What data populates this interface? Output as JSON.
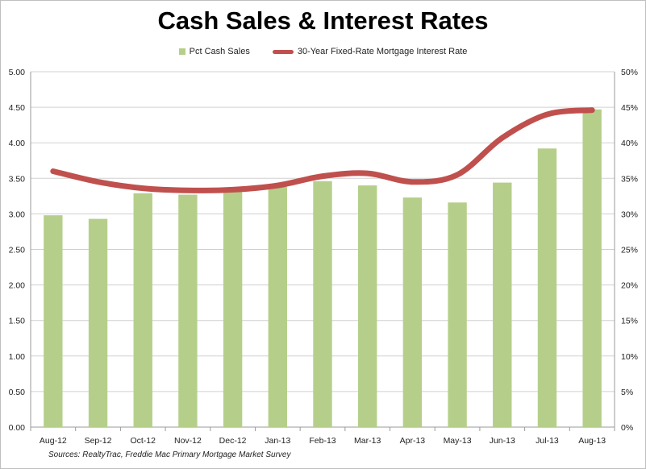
{
  "chart_data": {
    "type": "bar",
    "title": "Cash Sales & Interest Rates",
    "categories": [
      "Aug-12",
      "Sep-12",
      "Oct-12",
      "Nov-12",
      "Dec-12",
      "Jan-13",
      "Feb-13",
      "Mar-13",
      "Apr-13",
      "May-13",
      "Jun-13",
      "Jul-13",
      "Aug-13"
    ],
    "series": [
      {
        "name": "Pct Cash Sales",
        "type": "bar",
        "axis": "right",
        "color": "#b5cf8a",
        "values": [
          29.8,
          29.3,
          32.9,
          32.7,
          33.2,
          33.8,
          34.6,
          34.0,
          32.3,
          31.6,
          34.4,
          39.2,
          44.7
        ]
      },
      {
        "name": "30-Year Fixed-Rate Mortgage Interest Rate",
        "type": "line",
        "axis": "left",
        "color": "#c0504d",
        "values": [
          3.6,
          3.45,
          3.36,
          3.33,
          3.34,
          3.4,
          3.53,
          3.57,
          3.45,
          3.55,
          4.07,
          4.4,
          4.46
        ]
      }
    ],
    "y_left": {
      "ylim": [
        0,
        5
      ],
      "ticks": [
        "0.00",
        "0.50",
        "1.00",
        "1.50",
        "2.00",
        "2.50",
        "3.00",
        "3.50",
        "4.00",
        "4.50",
        "5.00"
      ]
    },
    "y_right": {
      "ylim": [
        0,
        50
      ],
      "ticks": [
        "0%",
        "5%",
        "10%",
        "15%",
        "20%",
        "25%",
        "30%",
        "35%",
        "40%",
        "45%",
        "50%"
      ]
    },
    "grid": true,
    "legend": "top-center",
    "source": "Sources: RealtyTrac, Freddie Mac Primary Mortgage Market Survey"
  }
}
